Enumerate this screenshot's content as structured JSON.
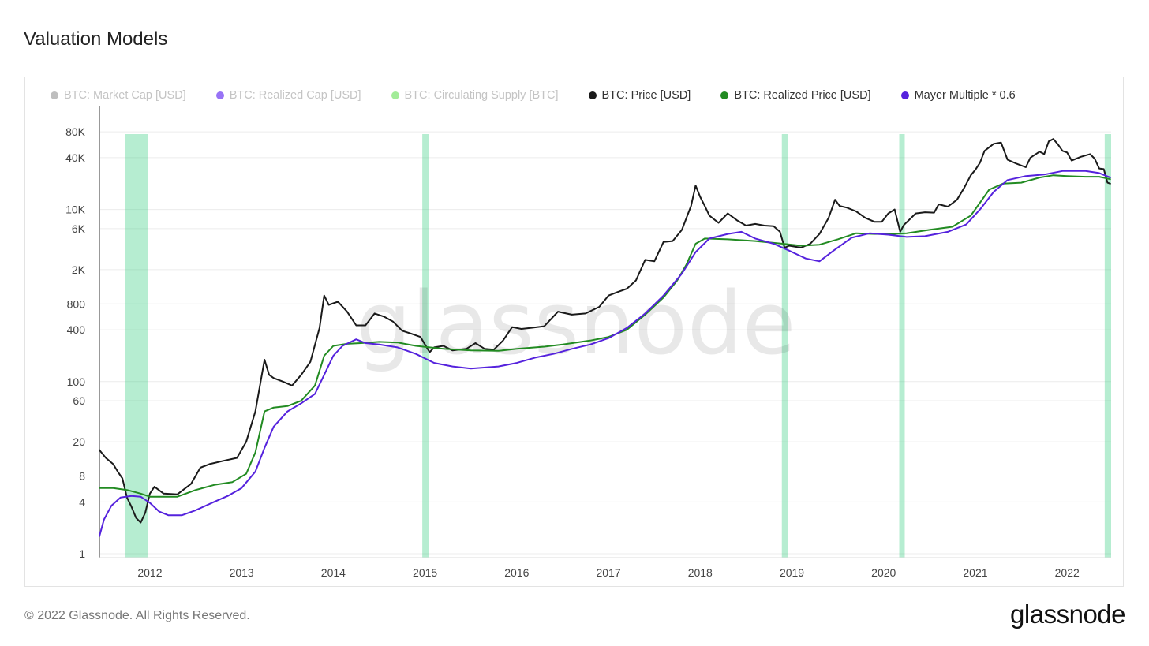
{
  "title": "Valuation Models",
  "footer": {
    "copyright": "© 2022 Glassnode. All Rights Reserved.",
    "brand": "glassnode"
  },
  "watermark": "glassnode",
  "colors": {
    "price": "#1a1a1a",
    "realized_price": "#228B22",
    "mayer": "#5522dd",
    "highlight": "#2ecc7a",
    "grid": "#ececec",
    "axis_text": "#444"
  },
  "legend": [
    {
      "label": "BTC: Market Cap [USD]",
      "color": "#888888",
      "active": false
    },
    {
      "label": "BTC: Realized Cap [USD]",
      "color": "#4400ee",
      "active": false
    },
    {
      "label": "BTC: Circulating Supply [BTC]",
      "color": "#55dd44",
      "active": false
    },
    {
      "label": "BTC: Price [USD]",
      "color": "#1a1a1a",
      "active": true
    },
    {
      "label": "BTC: Realized Price [USD]",
      "color": "#228B22",
      "active": true
    },
    {
      "label": "Mayer Multiple * 0.6",
      "color": "#5522dd",
      "active": true
    }
  ],
  "chart_data": {
    "type": "line",
    "y_scale": "log",
    "xlim": [
      2011.45,
      2022.48
    ],
    "ylim": [
      0.9,
      110000
    ],
    "y_ticks": [
      {
        "value": 1,
        "label": "1"
      },
      {
        "value": 4,
        "label": "4"
      },
      {
        "value": 8,
        "label": "8"
      },
      {
        "value": 20,
        "label": "20"
      },
      {
        "value": 60,
        "label": "60"
      },
      {
        "value": 100,
        "label": "100"
      },
      {
        "value": 400,
        "label": "400"
      },
      {
        "value": 800,
        "label": "800"
      },
      {
        "value": 2000,
        "label": "2K"
      },
      {
        "value": 6000,
        "label": "6K"
      },
      {
        "value": 10000,
        "label": "10K"
      },
      {
        "value": 40000,
        "label": "40K"
      },
      {
        "value": 80000,
        "label": "80K"
      }
    ],
    "x_ticks": [
      {
        "value": 2012.0,
        "label": "2012"
      },
      {
        "value": 2013.0,
        "label": "2013"
      },
      {
        "value": 2014.0,
        "label": "2014"
      },
      {
        "value": 2015.0,
        "label": "2015"
      },
      {
        "value": 2016.0,
        "label": "2016"
      },
      {
        "value": 2017.0,
        "label": "2017"
      },
      {
        "value": 2018.0,
        "label": "2018"
      },
      {
        "value": 2019.0,
        "label": "2019"
      },
      {
        "value": 2020.0,
        "label": "2020"
      },
      {
        "value": 2021.0,
        "label": "2021"
      },
      {
        "value": 2022.0,
        "label": "2022"
      }
    ],
    "highlight_ranges": [
      [
        2011.73,
        2011.98
      ],
      [
        2014.97,
        2015.04
      ],
      [
        2018.89,
        2018.96
      ],
      [
        2020.17,
        2020.23
      ],
      [
        2022.41,
        2022.48
      ]
    ],
    "series": [
      {
        "name": "BTC: Price [USD]",
        "points": [
          [
            2011.45,
            16
          ],
          [
            2011.52,
            13
          ],
          [
            2011.6,
            11
          ],
          [
            2011.65,
            9
          ],
          [
            2011.7,
            7.5
          ],
          [
            2011.75,
            4.5
          ],
          [
            2011.8,
            3.5
          ],
          [
            2011.85,
            2.6
          ],
          [
            2011.9,
            2.3
          ],
          [
            2011.95,
            3.0
          ],
          [
            2012.0,
            5.0
          ],
          [
            2012.05,
            6.0
          ],
          [
            2012.15,
            5.0
          ],
          [
            2012.3,
            4.9
          ],
          [
            2012.45,
            6.5
          ],
          [
            2012.55,
            10
          ],
          [
            2012.65,
            11
          ],
          [
            2012.8,
            12
          ],
          [
            2012.95,
            13
          ],
          [
            2013.05,
            20
          ],
          [
            2013.15,
            45
          ],
          [
            2013.25,
            180
          ],
          [
            2013.3,
            120
          ],
          [
            2013.35,
            110
          ],
          [
            2013.45,
            100
          ],
          [
            2013.55,
            90
          ],
          [
            2013.65,
            120
          ],
          [
            2013.75,
            170
          ],
          [
            2013.85,
            420
          ],
          [
            2013.9,
            1000
          ],
          [
            2013.95,
            780
          ],
          [
            2014.05,
            850
          ],
          [
            2014.15,
            650
          ],
          [
            2014.25,
            450
          ],
          [
            2014.35,
            450
          ],
          [
            2014.45,
            620
          ],
          [
            2014.55,
            570
          ],
          [
            2014.65,
            500
          ],
          [
            2014.75,
            390
          ],
          [
            2014.85,
            360
          ],
          [
            2014.95,
            330
          ],
          [
            2015.05,
            220
          ],
          [
            2015.1,
            250
          ],
          [
            2015.2,
            260
          ],
          [
            2015.3,
            230
          ],
          [
            2015.45,
            240
          ],
          [
            2015.55,
            280
          ],
          [
            2015.65,
            240
          ],
          [
            2015.75,
            235
          ],
          [
            2015.85,
            300
          ],
          [
            2015.95,
            430
          ],
          [
            2016.05,
            410
          ],
          [
            2016.15,
            420
          ],
          [
            2016.3,
            440
          ],
          [
            2016.45,
            650
          ],
          [
            2016.6,
            600
          ],
          [
            2016.75,
            620
          ],
          [
            2016.9,
            740
          ],
          [
            2017.0,
            1000
          ],
          [
            2017.1,
            1100
          ],
          [
            2017.2,
            1200
          ],
          [
            2017.3,
            1500
          ],
          [
            2017.4,
            2600
          ],
          [
            2017.5,
            2500
          ],
          [
            2017.6,
            4200
          ],
          [
            2017.7,
            4300
          ],
          [
            2017.8,
            5800
          ],
          [
            2017.85,
            8000
          ],
          [
            2017.9,
            11000
          ],
          [
            2017.95,
            19000
          ],
          [
            2018.0,
            14000
          ],
          [
            2018.05,
            11000
          ],
          [
            2018.1,
            8500
          ],
          [
            2018.2,
            7000
          ],
          [
            2018.3,
            9000
          ],
          [
            2018.4,
            7500
          ],
          [
            2018.5,
            6500
          ],
          [
            2018.6,
            6800
          ],
          [
            2018.7,
            6500
          ],
          [
            2018.8,
            6400
          ],
          [
            2018.87,
            5500
          ],
          [
            2018.92,
            3600
          ],
          [
            2018.97,
            3800
          ],
          [
            2019.1,
            3600
          ],
          [
            2019.2,
            4000
          ],
          [
            2019.3,
            5200
          ],
          [
            2019.4,
            8000
          ],
          [
            2019.47,
            13000
          ],
          [
            2019.52,
            11000
          ],
          [
            2019.6,
            10500
          ],
          [
            2019.7,
            9500
          ],
          [
            2019.8,
            8000
          ],
          [
            2019.9,
            7200
          ],
          [
            2019.98,
            7200
          ],
          [
            2020.05,
            9000
          ],
          [
            2020.12,
            10000
          ],
          [
            2020.18,
            5500
          ],
          [
            2020.22,
            6600
          ],
          [
            2020.35,
            9000
          ],
          [
            2020.45,
            9300
          ],
          [
            2020.55,
            9200
          ],
          [
            2020.6,
            11500
          ],
          [
            2020.7,
            10800
          ],
          [
            2020.8,
            13000
          ],
          [
            2020.88,
            18000
          ],
          [
            2020.95,
            25000
          ],
          [
            2021.0,
            29000
          ],
          [
            2021.05,
            35000
          ],
          [
            2021.1,
            48000
          ],
          [
            2021.2,
            58000
          ],
          [
            2021.28,
            60000
          ],
          [
            2021.35,
            38000
          ],
          [
            2021.45,
            34000
          ],
          [
            2021.55,
            31000
          ],
          [
            2021.6,
            40000
          ],
          [
            2021.7,
            47000
          ],
          [
            2021.75,
            44000
          ],
          [
            2021.8,
            62000
          ],
          [
            2021.85,
            66000
          ],
          [
            2021.9,
            57000
          ],
          [
            2021.95,
            48000
          ],
          [
            2022.0,
            46000
          ],
          [
            2022.05,
            37000
          ],
          [
            2022.15,
            41000
          ],
          [
            2022.25,
            44000
          ],
          [
            2022.3,
            39000
          ],
          [
            2022.35,
            30000
          ],
          [
            2022.4,
            29500
          ],
          [
            2022.44,
            20500
          ],
          [
            2022.47,
            20000
          ]
        ]
      },
      {
        "name": "BTC: Realized Price [USD]",
        "points": [
          [
            2011.45,
            5.8
          ],
          [
            2011.6,
            5.8
          ],
          [
            2011.75,
            5.5
          ],
          [
            2011.9,
            5.0
          ],
          [
            2012.0,
            4.6
          ],
          [
            2012.3,
            4.6
          ],
          [
            2012.5,
            5.5
          ],
          [
            2012.7,
            6.3
          ],
          [
            2012.9,
            6.8
          ],
          [
            2013.05,
            8.5
          ],
          [
            2013.15,
            15
          ],
          [
            2013.25,
            45
          ],
          [
            2013.35,
            50
          ],
          [
            2013.5,
            52
          ],
          [
            2013.65,
            60
          ],
          [
            2013.8,
            90
          ],
          [
            2013.9,
            200
          ],
          [
            2014.0,
            260
          ],
          [
            2014.15,
            275
          ],
          [
            2014.3,
            280
          ],
          [
            2014.5,
            290
          ],
          [
            2014.7,
            285
          ],
          [
            2014.9,
            260
          ],
          [
            2015.2,
            240
          ],
          [
            2015.5,
            230
          ],
          [
            2015.8,
            228
          ],
          [
            2016.0,
            240
          ],
          [
            2016.3,
            255
          ],
          [
            2016.5,
            270
          ],
          [
            2016.8,
            300
          ],
          [
            2017.0,
            330
          ],
          [
            2017.2,
            400
          ],
          [
            2017.4,
            600
          ],
          [
            2017.6,
            950
          ],
          [
            2017.75,
            1500
          ],
          [
            2017.85,
            2300
          ],
          [
            2017.95,
            4000
          ],
          [
            2018.05,
            4600
          ],
          [
            2018.3,
            4500
          ],
          [
            2018.6,
            4300
          ],
          [
            2018.9,
            4000
          ],
          [
            2019.1,
            3800
          ],
          [
            2019.3,
            3900
          ],
          [
            2019.5,
            4500
          ],
          [
            2019.7,
            5300
          ],
          [
            2019.9,
            5200
          ],
          [
            2020.1,
            5200
          ],
          [
            2020.25,
            5300
          ],
          [
            2020.5,
            5800
          ],
          [
            2020.75,
            6300
          ],
          [
            2020.95,
            8500
          ],
          [
            2021.05,
            12000
          ],
          [
            2021.15,
            17000
          ],
          [
            2021.3,
            20000
          ],
          [
            2021.5,
            20500
          ],
          [
            2021.7,
            23500
          ],
          [
            2021.85,
            25000
          ],
          [
            2022.0,
            24500
          ],
          [
            2022.2,
            24000
          ],
          [
            2022.35,
            24000
          ],
          [
            2022.47,
            22500
          ]
        ]
      },
      {
        "name": "Mayer Multiple * 0.6",
        "points": [
          [
            2011.45,
            1.6
          ],
          [
            2011.5,
            2.5
          ],
          [
            2011.58,
            3.6
          ],
          [
            2011.68,
            4.5
          ],
          [
            2011.8,
            4.7
          ],
          [
            2011.9,
            4.6
          ],
          [
            2012.0,
            3.9
          ],
          [
            2012.1,
            3.1
          ],
          [
            2012.2,
            2.8
          ],
          [
            2012.35,
            2.8
          ],
          [
            2012.5,
            3.2
          ],
          [
            2012.7,
            4.0
          ],
          [
            2012.85,
            4.7
          ],
          [
            2013.0,
            5.8
          ],
          [
            2013.15,
            9
          ],
          [
            2013.25,
            17
          ],
          [
            2013.35,
            30
          ],
          [
            2013.5,
            45
          ],
          [
            2013.65,
            56
          ],
          [
            2013.8,
            72
          ],
          [
            2013.9,
            120
          ],
          [
            2014.0,
            200
          ],
          [
            2014.1,
            260
          ],
          [
            2014.25,
            310
          ],
          [
            2014.35,
            280
          ],
          [
            2014.5,
            270
          ],
          [
            2014.7,
            250
          ],
          [
            2014.9,
            210
          ],
          [
            2015.1,
            165
          ],
          [
            2015.3,
            150
          ],
          [
            2015.5,
            142
          ],
          [
            2015.8,
            150
          ],
          [
            2016.0,
            165
          ],
          [
            2016.2,
            190
          ],
          [
            2016.4,
            210
          ],
          [
            2016.6,
            240
          ],
          [
            2016.8,
            270
          ],
          [
            2017.0,
            320
          ],
          [
            2017.2,
            420
          ],
          [
            2017.4,
            620
          ],
          [
            2017.6,
            1000
          ],
          [
            2017.8,
            1800
          ],
          [
            2017.95,
            3200
          ],
          [
            2018.1,
            4600
          ],
          [
            2018.3,
            5200
          ],
          [
            2018.45,
            5500
          ],
          [
            2018.6,
            4600
          ],
          [
            2018.8,
            4000
          ],
          [
            2018.95,
            3400
          ],
          [
            2019.15,
            2700
          ],
          [
            2019.3,
            2500
          ],
          [
            2019.45,
            3300
          ],
          [
            2019.65,
            4700
          ],
          [
            2019.85,
            5300
          ],
          [
            2020.05,
            5100
          ],
          [
            2020.25,
            4800
          ],
          [
            2020.45,
            4900
          ],
          [
            2020.7,
            5500
          ],
          [
            2020.9,
            6700
          ],
          [
            2021.05,
            10000
          ],
          [
            2021.2,
            16000
          ],
          [
            2021.35,
            22000
          ],
          [
            2021.55,
            24500
          ],
          [
            2021.75,
            25500
          ],
          [
            2021.95,
            28000
          ],
          [
            2022.2,
            28000
          ],
          [
            2022.35,
            26500
          ],
          [
            2022.47,
            23500
          ]
        ]
      }
    ]
  }
}
